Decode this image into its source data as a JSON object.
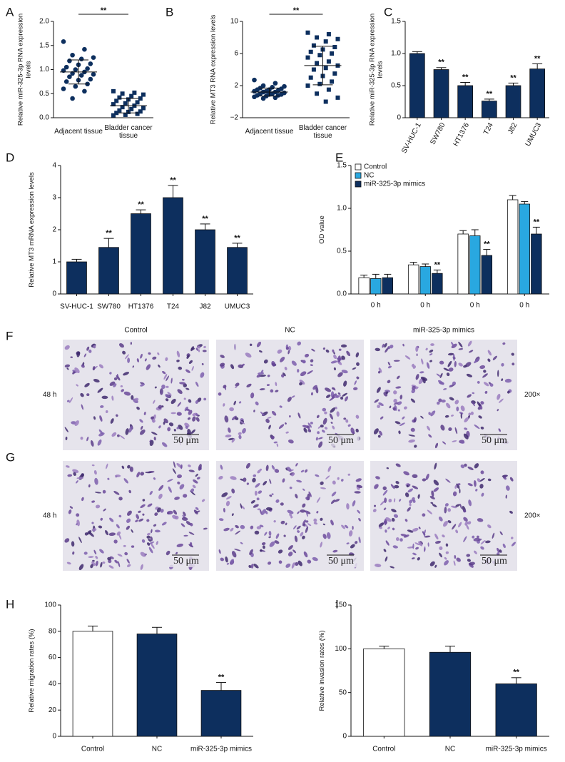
{
  "chart_data": [
    {
      "type": "strip",
      "panel": "A",
      "ylabel": "Relative miR-325-3p RNA expression levels",
      "categories": [
        "Adjacent tissue",
        "Bladder cancer tissue"
      ],
      "groups": [
        {
          "marker": "circle",
          "color": "#0d2f5e",
          "values": [
            1.58,
            1.42,
            1.3,
            1.25,
            1.22,
            1.18,
            1.12,
            1.1,
            1.05,
            1.02,
            1.0,
            0.98,
            0.95,
            0.92,
            0.9,
            0.88,
            0.85,
            0.8,
            0.78,
            0.75,
            0.7,
            0.65,
            0.6,
            0.55,
            0.4
          ],
          "mean": 0.95,
          "error": 0.25
        },
        {
          "marker": "square",
          "color": "#0d2f5e",
          "values": [
            0.55,
            0.52,
            0.5,
            0.48,
            0.45,
            0.42,
            0.4,
            0.38,
            0.35,
            0.32,
            0.3,
            0.28,
            0.25,
            0.22,
            0.2,
            0.18,
            0.15,
            0.13,
            0.12,
            0.1,
            0.08,
            0.06,
            0.05
          ],
          "mean": 0.25,
          "error": 0.15
        }
      ],
      "significance": "**",
      "ylim": [
        0,
        2
      ],
      "yticks": [
        {
          "value": 0,
          "label": "0.0"
        },
        0.5,
        {
          "value": 1,
          "label": "1.0"
        },
        1.5,
        {
          "value": 2,
          "label": "2.0"
        }
      ]
    },
    {
      "type": "strip",
      "panel": "B",
      "ylabel": "Relative MT3 RNA expression levels",
      "categories": [
        "Adjacent tissue",
        "Bladder cancer tissue"
      ],
      "groups": [
        {
          "marker": "circle",
          "color": "#0d2f5e",
          "values": [
            2.7,
            2.3,
            2.0,
            1.9,
            1.8,
            1.7,
            1.6,
            1.5,
            1.5,
            1.4,
            1.3,
            1.3,
            1.2,
            1.2,
            1.1,
            1.0,
            1.0,
            0.9,
            0.9,
            0.8,
            0.8,
            0.7,
            0.6,
            0.5,
            0.4
          ],
          "mean": 1.2,
          "error": 0.5
        },
        {
          "marker": "square",
          "color": "#0d2f5e",
          "values": [
            8.6,
            8.4,
            8.0,
            7.8,
            7.5,
            7.0,
            6.8,
            6.5,
            6.2,
            6.0,
            5.8,
            5.5,
            5.0,
            4.8,
            4.5,
            4.2,
            4.0,
            3.5,
            3.2,
            3.0,
            2.5,
            2.2,
            2.0,
            1.5,
            1.0,
            0.5,
            0.0
          ],
          "mean": 4.5,
          "error": 2.4
        }
      ],
      "significance": "**",
      "ylim": [
        -2,
        10
      ],
      "yticks": [
        {
          "value": -2,
          "label": "−2"
        },
        2,
        6,
        10
      ]
    },
    {
      "type": "bar",
      "panel": "C",
      "ylabel": "Relative miR-325-3p RNA expression levels",
      "categories": [
        "SV-HUC-1",
        "SW780",
        "HT1376",
        "T24",
        "J82",
        "UMUC3"
      ],
      "values": [
        1.0,
        0.75,
        0.5,
        0.26,
        0.5,
        0.76
      ],
      "errors": [
        0.03,
        0.03,
        0.05,
        0.03,
        0.04,
        0.08
      ],
      "colors": [
        "#0d2f5e",
        "#0d2f5e",
        "#0d2f5e",
        "#0d2f5e",
        "#0d2f5e",
        "#0d2f5e"
      ],
      "annotations": [
        null,
        "**",
        "**",
        "**",
        "**",
        "**"
      ],
      "ylim": [
        0,
        1.5
      ],
      "yticks": [
        0,
        0.5,
        {
          "value": 1,
          "label": "1.0"
        },
        1.5
      ]
    },
    {
      "type": "bar",
      "panel": "D",
      "ylabel": "Relative MT3 mRNA expression levels",
      "categories": [
        "SV-HUC-1",
        "SW780",
        "HT1376",
        "T24",
        "J82",
        "UMUC3"
      ],
      "values": [
        1.0,
        1.45,
        2.5,
        3.0,
        2.0,
        1.45
      ],
      "errors": [
        0.08,
        0.28,
        0.12,
        0.38,
        0.18,
        0.13
      ],
      "colors": [
        "#0d2f5e",
        "#0d2f5e",
        "#0d2f5e",
        "#0d2f5e",
        "#0d2f5e",
        "#0d2f5e"
      ],
      "annotations": [
        null,
        "**",
        "**",
        "**",
        "**",
        "**"
      ],
      "ylim": [
        0,
        4
      ],
      "yticks": [
        0,
        1,
        2,
        3,
        4
      ]
    },
    {
      "type": "grouped_bar",
      "panel": "E",
      "ylabel": "OD value",
      "categories": [
        "0 h",
        "0 h",
        "0 h",
        "0 h"
      ],
      "series": [
        {
          "name": "Control",
          "color": "#ffffff",
          "values": [
            0.19,
            0.34,
            0.7,
            1.1
          ],
          "errors": [
            0.03,
            0.03,
            0.04,
            0.05
          ],
          "annotations": [
            null,
            null,
            null,
            null
          ]
        },
        {
          "name": "NC",
          "color": "#29a8e0",
          "values": [
            0.18,
            0.32,
            0.68,
            1.05
          ],
          "errors": [
            0.05,
            0.03,
            0.07,
            0.03
          ],
          "annotations": [
            null,
            null,
            null,
            null
          ]
        },
        {
          "name": "miR-325-3p mimics",
          "color": "#0d2f5e",
          "values": [
            0.19,
            0.24,
            0.45,
            0.7
          ],
          "errors": [
            0.04,
            0.04,
            0.07,
            0.08
          ],
          "annotations": [
            null,
            "**",
            "**",
            "**"
          ]
        }
      ],
      "legend": "upper left",
      "ylim": [
        0,
        1.5
      ],
      "yticks": [
        {
          "value": 0,
          "label": "0.0"
        },
        0.5,
        {
          "value": 1,
          "label": "1.0"
        },
        1.5
      ]
    },
    {
      "type": "bar",
      "panel": "H",
      "ylabel": "Relative migration rates (%)",
      "categories": [
        "Control",
        "NC",
        "miR-325-3p mimics"
      ],
      "values": [
        80,
        78,
        35
      ],
      "errors": [
        4,
        5,
        6
      ],
      "colors": [
        "#ffffff",
        "#0d2f5e",
        "#0d2f5e"
      ],
      "annotations": [
        null,
        null,
        "**"
      ],
      "ylim": [
        0,
        100
      ],
      "yticks": [
        0,
        20,
        40,
        60,
        80,
        100
      ]
    },
    {
      "type": "bar",
      "panel": "I",
      "ylabel": "Relative invasion rates (%)",
      "categories": [
        "Control",
        "NC",
        "miR-325-3p mimics"
      ],
      "values": [
        100,
        96,
        60
      ],
      "errors": [
        3,
        7,
        7
      ],
      "colors": [
        "#ffffff",
        "#0d2f5e",
        "#0d2f5e"
      ],
      "annotations": [
        null,
        null,
        "**"
      ],
      "ylim": [
        0,
        150
      ],
      "yticks": [
        0,
        50,
        100,
        150
      ]
    }
  ],
  "micrographs": {
    "columns": [
      "Control",
      "NC",
      "miR-325-3p mimics"
    ],
    "rows": [
      {
        "panel": "F",
        "time": "48 h",
        "magnification": "200×",
        "scale_bars": [
          "50 μm",
          "50 μm",
          "50 μm"
        ]
      },
      {
        "panel": "G",
        "time": "48 h",
        "magnification": "200×",
        "scale_bars": [
          "50 μm",
          "50 μm",
          "50 μm"
        ]
      }
    ]
  }
}
